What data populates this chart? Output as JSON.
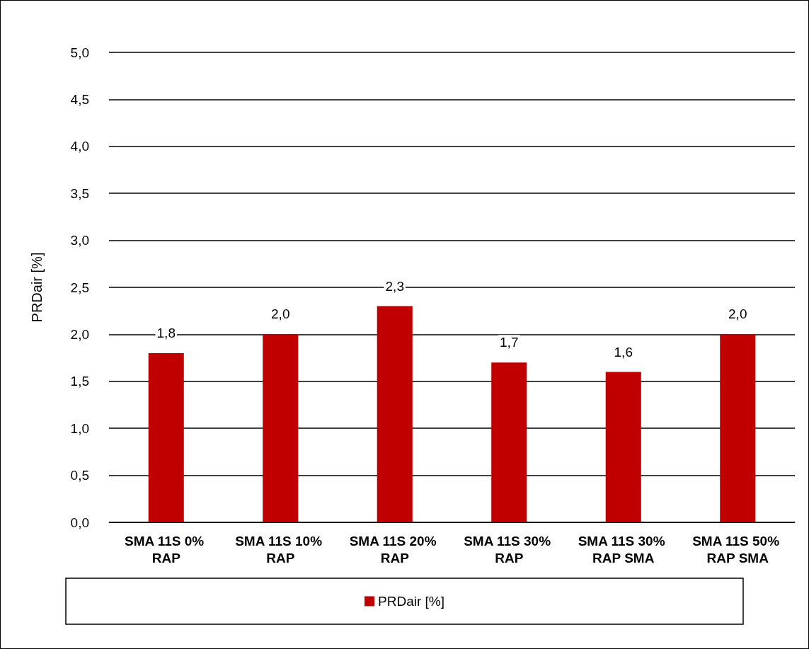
{
  "chart_data": {
    "type": "bar",
    "ylabel": "PRDair [%]",
    "categories": [
      "SMA 11S 0% RAP",
      "SMA 11S 10% RAP",
      "SMA 11S 20% RAP",
      "SMA 11S 30% RAP",
      "SMA 11S 30% RAP SMA",
      "SMA 11S 50% RAP SMA"
    ],
    "series": [
      {
        "name": "PRDair [%]",
        "color": "#c00000",
        "values": [
          1.8,
          2.0,
          2.3,
          1.7,
          1.6,
          2.0
        ],
        "value_labels": [
          "1,8",
          "2,0",
          "2,3",
          "1,7",
          "1,6",
          "2,0"
        ]
      }
    ],
    "ylim": [
      0,
      5
    ],
    "yticks": [
      {
        "value": 0,
        "label": "0,0"
      },
      {
        "value": 0.5,
        "label": "0,5"
      },
      {
        "value": 1,
        "label": "1,0"
      },
      {
        "value": 1.5,
        "label": "1,5"
      },
      {
        "value": 2,
        "label": "2,0"
      },
      {
        "value": 2.5,
        "label": "2,5"
      },
      {
        "value": 3,
        "label": "3,0"
      },
      {
        "value": 3.5,
        "label": "3,5"
      },
      {
        "value": 4,
        "label": "4,0"
      },
      {
        "value": 4.5,
        "label": "4,5"
      },
      {
        "value": 5,
        "label": "5,0"
      }
    ],
    "grid": "y",
    "legend": "bottom"
  }
}
